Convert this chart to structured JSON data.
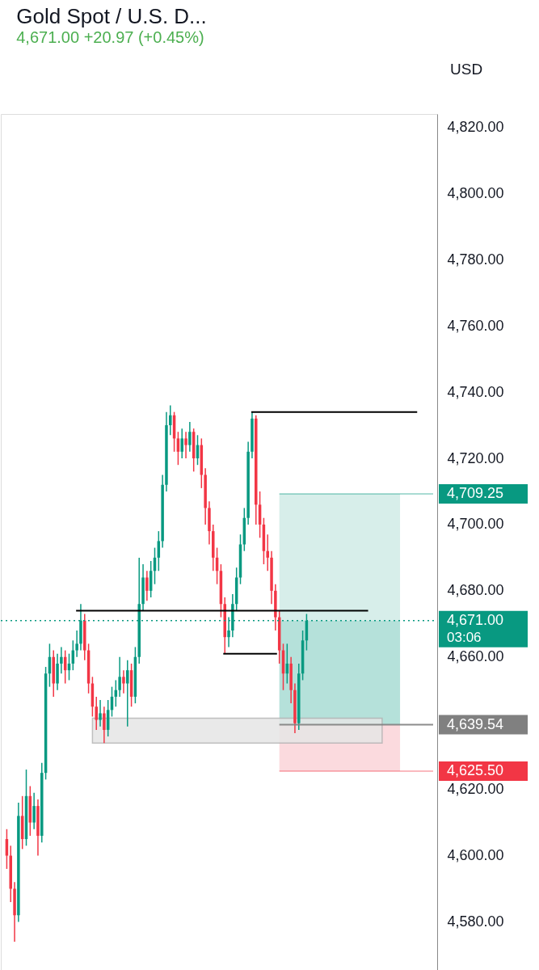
{
  "chart_data": {
    "type": "candlestick",
    "title": "Gold Spot / U.S. D...",
    "subtitle": "4,671.00 +20.97 (+0.45%)",
    "annotations": [
      "USD",
      "03:06"
    ],
    "categories": [
      null,
      null,
      null,
      null,
      null,
      null,
      null,
      null,
      null,
      null,
      null,
      null,
      null,
      null,
      null,
      null,
      null,
      null,
      null,
      null,
      null,
      null,
      null,
      null,
      null,
      null,
      null,
      null,
      null,
      null,
      null,
      null,
      null,
      null,
      null,
      null,
      null,
      null,
      null,
      null,
      null,
      null,
      null,
      null,
      null,
      null,
      null,
      null,
      null,
      null,
      null,
      null,
      null,
      null,
      null,
      null,
      null,
      null,
      null,
      null,
      null,
      null,
      null,
      null,
      null,
      null,
      null,
      null,
      null,
      null,
      null,
      null,
      null,
      null,
      null,
      null,
      null,
      null,
      null,
      null,
      null,
      null,
      null,
      null,
      null,
      null,
      null,
      null,
      null,
      null,
      null,
      null,
      null,
      null,
      null,
      null,
      null,
      null,
      null,
      null,
      null,
      null,
      null,
      null,
      null,
      null,
      null,
      null,
      null,
      null
    ],
    "ohlc": [
      [
        4605,
        4608,
        4596,
        4600
      ],
      [
        4600,
        4603,
        4586,
        4590
      ],
      [
        4590,
        4592,
        4574,
        4582
      ],
      [
        4582,
        4616,
        4580,
        4612
      ],
      [
        4612,
        4618,
        4602,
        4605
      ],
      [
        4605,
        4626,
        4603,
        4618
      ],
      [
        4618,
        4621,
        4606,
        4610
      ],
      [
        4610,
        4619,
        4608,
        4615
      ],
      [
        4615,
        4617,
        4600,
        4606
      ],
      [
        4606,
        4628,
        4604,
        4625
      ],
      [
        4625,
        4657,
        4623,
        4655
      ],
      [
        4655,
        4664,
        4651,
        4660
      ],
      [
        4660,
        4662,
        4648,
        4652
      ],
      [
        4652,
        4661,
        4650,
        4658
      ],
      [
        4658,
        4663,
        4655,
        4660
      ],
      [
        4660,
        4662,
        4652,
        4656
      ],
      [
        4656,
        4661,
        4653,
        4658
      ],
      [
        4658,
        4665,
        4656,
        4662
      ],
      [
        4662,
        4668,
        4660,
        4664
      ],
      [
        4664,
        4676,
        4662,
        4671
      ],
      [
        4671,
        4673,
        4659,
        4662
      ],
      [
        4662,
        4664,
        4649,
        4652
      ],
      [
        4652,
        4654,
        4642,
        4645
      ],
      [
        4645,
        4648,
        4638,
        4641
      ],
      [
        4641,
        4647,
        4639,
        4643
      ],
      [
        4643,
        4645,
        4634,
        4638
      ],
      [
        4638,
        4647,
        4636,
        4644
      ],
      [
        4644,
        4651,
        4642,
        4648
      ],
      [
        4648,
        4653,
        4645,
        4650
      ],
      [
        4650,
        4660,
        4648,
        4654
      ],
      [
        4654,
        4656,
        4649,
        4652
      ],
      [
        4652,
        4659,
        4639,
        4656
      ],
      [
        4656,
        4658,
        4645,
        4648
      ],
      [
        4648,
        4663,
        4646,
        4660
      ],
      [
        4660,
        4690,
        4658,
        4676
      ],
      [
        4676,
        4688,
        4674,
        4684
      ],
      [
        4684,
        4686,
        4677,
        4680
      ],
      [
        4680,
        4689,
        4678,
        4686
      ],
      [
        4686,
        4693,
        4682,
        4690
      ],
      [
        4690,
        4698,
        4686,
        4695
      ],
      [
        4695,
        4715,
        4693,
        4712
      ],
      [
        4712,
        4734,
        4710,
        4730
      ],
      [
        4730,
        4736,
        4727,
        4733
      ],
      [
        4733,
        4734,
        4722,
        4726
      ],
      [
        4726,
        4728,
        4718,
        4722
      ],
      [
        4722,
        4729,
        4720,
        4726
      ],
      [
        4726,
        4728,
        4720,
        4724
      ],
      [
        4724,
        4731,
        4722,
        4728
      ],
      [
        4728,
        4729,
        4716,
        4720
      ],
      [
        4720,
        4727,
        4718,
        4724
      ],
      [
        4724,
        4726,
        4711,
        4715
      ],
      [
        4715,
        4717,
        4700,
        4705
      ],
      [
        4705,
        4707,
        4694,
        4698
      ],
      [
        4698,
        4700,
        4686,
        4690
      ],
      [
        4690,
        4693,
        4682,
        4686
      ],
      [
        4686,
        4688,
        4672,
        4676
      ],
      [
        4676,
        4678,
        4661,
        4666
      ],
      [
        4666,
        4672,
        4663,
        4668
      ],
      [
        4668,
        4679,
        4666,
        4676
      ],
      [
        4676,
        4687,
        4674,
        4684
      ],
      [
        4684,
        4697,
        4682,
        4694
      ],
      [
        4694,
        4705,
        4692,
        4702
      ],
      [
        4702,
        4725,
        4700,
        4722
      ],
      [
        4722,
        4734,
        4720,
        4732
      ],
      [
        4732,
        4733,
        4700,
        4706
      ],
      [
        4706,
        4710,
        4696,
        4700
      ],
      [
        4700,
        4702,
        4688,
        4692
      ],
      [
        4692,
        4697,
        4686,
        4690
      ],
      [
        4690,
        4692,
        4676,
        4680
      ],
      [
        4680,
        4682,
        4668,
        4672
      ],
      [
        4672,
        4674,
        4658,
        4662
      ],
      [
        4662,
        4664,
        4650,
        4655
      ],
      [
        4655,
        4664,
        4652,
        4658
      ],
      [
        4658,
        4660,
        4646,
        4650
      ],
      [
        4650,
        4652,
        4637,
        4640
      ],
      [
        4640,
        4658,
        4638,
        4655
      ],
      [
        4655,
        4668,
        4653,
        4665
      ],
      [
        4665,
        4673,
        4662,
        4671
      ],
      null,
      null,
      null,
      null,
      null,
      null,
      null,
      null,
      null,
      null,
      null,
      null,
      null,
      null,
      null,
      null,
      null,
      null,
      null,
      null,
      null,
      null,
      null,
      null,
      null,
      null,
      null,
      null,
      null,
      null,
      null,
      null
    ],
    "colors": [
      "#f23645",
      "#f23645",
      "#f23645",
      "#089981",
      "#f23645",
      "#089981",
      "#f23645",
      "#089981",
      "#f23645",
      "#089981",
      "#089981",
      "#089981",
      "#f23645",
      "#089981",
      "#089981",
      "#f23645",
      "#089981",
      "#089981",
      "#089981",
      "#089981",
      "#f23645",
      "#f23645",
      "#f23645",
      "#f23645",
      "#089981",
      "#f23645",
      "#089981",
      "#089981",
      "#089981",
      "#089981",
      "#f23645",
      "#089981",
      "#f23645",
      "#089981",
      "#089981",
      "#089981",
      "#f23645",
      "#089981",
      "#089981",
      "#089981",
      "#089981",
      "#089981",
      "#089981",
      "#f23645",
      "#f23645",
      "#089981",
      "#f23645",
      "#089981",
      "#f23645",
      "#089981",
      "#f23645",
      "#f23645",
      "#f23645",
      "#f23645",
      "#f23645",
      "#f23645",
      "#f23645",
      "#089981",
      "#089981",
      "#089981",
      "#089981",
      "#089981",
      "#089981",
      "#089981",
      "#f23645",
      "#f23645",
      "#f23645",
      "#f23645",
      "#f23645",
      "#f23645",
      "#f23645",
      "#f23645",
      "#089981",
      "#f23645",
      "#f23645",
      "#089981",
      "#089981",
      "#089981",
      null,
      null,
      null,
      null,
      null,
      null,
      null,
      null,
      null,
      null,
      null,
      null,
      null,
      null,
      null,
      null,
      null,
      null,
      null,
      null,
      null,
      null,
      null,
      null,
      null,
      null,
      null,
      null,
      null,
      null,
      null,
      null
    ],
    "bands": [
      {
        "axis": "y",
        "from": 4671,
        "to": 4709.25,
        "color": "#d0ebe6"
      },
      {
        "axis": "y",
        "from": 4639.54,
        "to": 4671,
        "color": "#a8dcd3"
      },
      {
        "axis": "y",
        "from": 4625.5,
        "to": 4639.54,
        "color": "#fad4d8"
      },
      {
        "axis": "y",
        "from": 4634,
        "to": 4641.5,
        "color": "#e6e6e6"
      }
    ],
    "ref_lines": [
      {
        "axis": "y",
        "value": 4734,
        "color": "#000000",
        "line_style": "solid"
      },
      {
        "axis": "y",
        "value": 4674,
        "color": "#000000",
        "line_style": "solid"
      },
      {
        "axis": "y",
        "value": 4661,
        "color": "#000000",
        "line_style": "solid"
      },
      {
        "axis": "y",
        "value": 4709.25,
        "label": "4,709.25",
        "color": "#089981",
        "line_style": "solid"
      },
      {
        "axis": "y",
        "value": 4671,
        "label": "4,671.00",
        "color": "#089981",
        "line_style": "dotted"
      },
      {
        "axis": "y",
        "value": 4639.54,
        "label": "4,639.54",
        "color": "#808080",
        "line_style": "solid"
      },
      {
        "axis": "y",
        "value": 4625.5,
        "label": "4,625.50",
        "color": "#f23645",
        "line_style": "solid"
      }
    ],
    "ylim": [
      4564,
      4824
    ],
    "yticks": [
      {
        "value": 4580,
        "label": "4,580.00"
      },
      {
        "value": 4600,
        "label": "4,600.00"
      },
      {
        "value": 4620,
        "label": "4,620.00"
      },
      {
        "value": 4660,
        "label": "4,660.00"
      },
      {
        "value": 4680,
        "label": "4,680.00"
      },
      {
        "value": 4700,
        "label": "4,700.00"
      },
      {
        "value": 4720,
        "label": "4,720.00"
      },
      {
        "value": 4740,
        "label": "4,740.00"
      },
      {
        "value": 4760,
        "label": "4,760.00"
      },
      {
        "value": 4780,
        "label": "4,780.00"
      },
      {
        "value": 4800,
        "label": "4,800.00"
      },
      {
        "value": 4820,
        "label": "4,820.00"
      }
    ],
    "tick_labels": "y",
    "grid": false
  }
}
